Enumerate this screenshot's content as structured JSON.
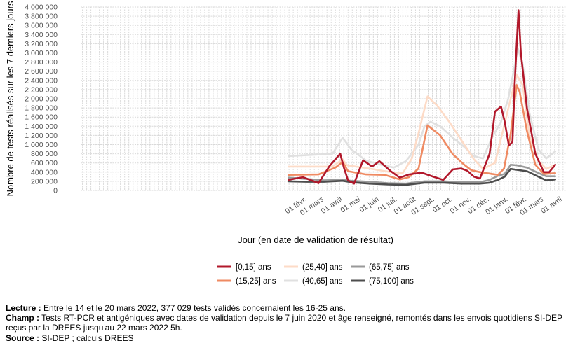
{
  "chart_data": {
    "type": "line",
    "title": "",
    "xlabel": "Jour (en date de validation de résultat)",
    "ylabel": "Nombre de tests réalisés sur les 7 derniers jours",
    "ylim": [
      0,
      4000000
    ],
    "xlim": [
      "2020-01-22",
      "2022-04-08"
    ],
    "grid": true,
    "legend_position": "bottom",
    "x_tick_labels": [
      "01 févr.",
      "01 mars",
      "01 avril",
      "01 mai",
      "01 juin",
      "01 juil.",
      "01 août",
      "01 sept.",
      "01 oct.",
      "01 nov.",
      "01 déc.",
      "01 janv.",
      "01 févr.",
      "01 mars",
      "01 avril"
    ],
    "y_tick_labels": [
      "0",
      "200 000",
      "400 000",
      "600 000",
      "800 000",
      "1 000 000",
      "1 200 000",
      "1 400 000",
      "1 600 000",
      "1 800 000",
      "2 000 000",
      "2 200 000",
      "2 400 000",
      "2 600 000",
      "2 800 000",
      "3 000 000",
      "3 200 000",
      "3 400 000",
      "3 600 000",
      "3 800 000",
      "4 000 000"
    ],
    "y_ticks": [
      0,
      200000,
      400000,
      600000,
      800000,
      1000000,
      1200000,
      1400000,
      1600000,
      1800000,
      2000000,
      2200000,
      2400000,
      2600000,
      2800000,
      3000000,
      3200000,
      3400000,
      3600000,
      3800000,
      4000000
    ],
    "series": [
      {
        "name": "[0,15] ans",
        "color": "#b2182b",
        "x": [
          "2021-01-01",
          "2021-01-25",
          "2021-02-20",
          "2021-03-10",
          "2021-03-28",
          "2021-04-03",
          "2021-04-10",
          "2021-04-20",
          "2021-05-05",
          "2021-05-20",
          "2021-06-01",
          "2021-06-20",
          "2021-07-05",
          "2021-07-20",
          "2021-08-10",
          "2021-09-01",
          "2021-09-15",
          "2021-10-01",
          "2021-10-15",
          "2021-10-25",
          "2021-11-05",
          "2021-11-15",
          "2021-12-01",
          "2021-12-10",
          "2021-12-20",
          "2021-12-26",
          "2022-01-02",
          "2022-01-08",
          "2022-01-12",
          "2022-01-18",
          "2022-01-22",
          "2022-02-01",
          "2022-02-15",
          "2022-03-01",
          "2022-03-10",
          "2022-03-20"
        ],
        "y": [
          230000,
          290000,
          160000,
          530000,
          800000,
          500000,
          220000,
          150000,
          660000,
          520000,
          640000,
          420000,
          280000,
          350000,
          390000,
          290000,
          230000,
          460000,
          480000,
          430000,
          300000,
          260000,
          800000,
          1720000,
          1830000,
          1500000,
          980000,
          1060000,
          2400000,
          3930000,
          3000000,
          1800000,
          800000,
          400000,
          400000,
          560000
        ]
      },
      {
        "name": "(15,25] ans",
        "color": "#ef8a62",
        "x": [
          "2021-01-01",
          "2021-02-20",
          "2021-03-20",
          "2021-04-01",
          "2021-04-10",
          "2021-05-10",
          "2021-06-10",
          "2021-07-05",
          "2021-07-20",
          "2021-08-05",
          "2021-08-20",
          "2021-09-10",
          "2021-10-01",
          "2021-10-20",
          "2021-11-01",
          "2021-11-15",
          "2021-12-15",
          "2021-12-25",
          "2022-01-05",
          "2022-01-15",
          "2022-01-20",
          "2022-02-01",
          "2022-02-15",
          "2022-03-01",
          "2022-03-20"
        ],
        "y": [
          340000,
          350000,
          500000,
          620000,
          420000,
          350000,
          340000,
          240000,
          290000,
          480000,
          1420000,
          1200000,
          790000,
          560000,
          440000,
          400000,
          340000,
          480000,
          1230000,
          2300000,
          2150000,
          1300000,
          560000,
          360000,
          377000
        ]
      },
      {
        "name": "(25,40] ans",
        "color": "#fddbc7",
        "x": [
          "2021-01-01",
          "2021-03-15",
          "2021-04-01",
          "2021-04-08",
          "2021-05-15",
          "2021-06-20",
          "2021-07-10",
          "2021-07-25",
          "2021-08-05",
          "2021-08-20",
          "2021-09-05",
          "2021-09-25",
          "2021-10-20",
          "2021-11-05",
          "2021-11-20",
          "2021-12-10",
          "2021-12-25",
          "2022-01-05",
          "2022-01-15",
          "2022-01-25",
          "2022-02-05",
          "2022-02-20",
          "2022-03-05",
          "2022-03-20"
        ],
        "y": [
          520000,
          520000,
          680000,
          550000,
          480000,
          400000,
          380000,
          700000,
          1250000,
          2050000,
          1850000,
          1500000,
          1000000,
          680000,
          470000,
          600000,
          1400000,
          2000000,
          2520000,
          2300000,
          1200000,
          650000,
          470000,
          560000
        ]
      },
      {
        "name": "(40,65] ans",
        "color": "#e0e0e0",
        "x": [
          "2021-01-01",
          "2021-03-15",
          "2021-04-01",
          "2021-04-15",
          "2021-05-10",
          "2021-06-01",
          "2021-06-25",
          "2021-07-15",
          "2021-07-25",
          "2021-08-05",
          "2021-08-15",
          "2021-08-25",
          "2021-09-10",
          "2021-10-01",
          "2021-10-20",
          "2021-11-05",
          "2021-11-20",
          "2021-12-05",
          "2021-12-20",
          "2022-01-01",
          "2022-01-10",
          "2022-01-17",
          "2022-01-25",
          "2022-02-05",
          "2022-02-20",
          "2022-03-05",
          "2022-03-20"
        ],
        "y": [
          750000,
          800000,
          1150000,
          900000,
          650000,
          570000,
          500000,
          640000,
          800000,
          1000000,
          1400000,
          1500000,
          1400000,
          1150000,
          950000,
          750000,
          700000,
          1150000,
          1500000,
          2000000,
          2600000,
          3100000,
          2750000,
          1700000,
          900000,
          700000,
          850000
        ]
      },
      {
        "name": "(65,75] ans",
        "color": "#999999",
        "x": [
          "2021-01-01",
          "2021-02-01",
          "2021-03-01",
          "2021-04-01",
          "2021-04-15",
          "2021-05-15",
          "2021-06-15",
          "2021-07-15",
          "2021-08-15",
          "2021-09-15",
          "2021-10-15",
          "2021-11-15",
          "2021-12-01",
          "2021-12-15",
          "2021-12-26",
          "2022-01-05",
          "2022-01-15",
          "2022-02-01",
          "2022-02-20",
          "2022-03-05",
          "2022-03-20"
        ],
        "y": [
          280000,
          250000,
          220000,
          230000,
          210000,
          190000,
          160000,
          150000,
          200000,
          200000,
          180000,
          180000,
          230000,
          320000,
          360000,
          560000,
          550000,
          500000,
          380000,
          310000,
          310000
        ]
      },
      {
        "name": "(75,100] ans",
        "color": "#4d4d4d",
        "x": [
          "2021-01-01",
          "2021-02-01",
          "2021-03-01",
          "2021-04-01",
          "2021-04-15",
          "2021-05-15",
          "2021-06-15",
          "2021-07-15",
          "2021-08-15",
          "2021-09-15",
          "2021-10-15",
          "2021-11-15",
          "2021-12-01",
          "2021-12-15",
          "2021-12-26",
          "2022-01-05",
          "2022-01-15",
          "2022-02-01",
          "2022-02-20",
          "2022-03-05",
          "2022-03-20"
        ],
        "y": [
          200000,
          190000,
          190000,
          210000,
          180000,
          150000,
          130000,
          120000,
          170000,
          170000,
          150000,
          150000,
          170000,
          230000,
          300000,
          470000,
          450000,
          420000,
          300000,
          220000,
          240000
        ]
      }
    ]
  },
  "notes": {
    "lecture_label": "Lecture :",
    "lecture_text": " Entre le 14 et le 20 mars 2022, 377 029 tests validés concernaient les 16-25 ans.",
    "champ_label": "Champ :",
    "champ_text": " Tests RT-PCR et antigéniques avec dates de validation depuis le 7 juin 2020 et âge renseigné, remontés dans les envois quotidiens SI-DEP reçus par la DREES jusqu'au 22 mars 2022 5h.",
    "source_label": "Source :",
    "source_text": " SI-DEP ; calculs DREES"
  }
}
